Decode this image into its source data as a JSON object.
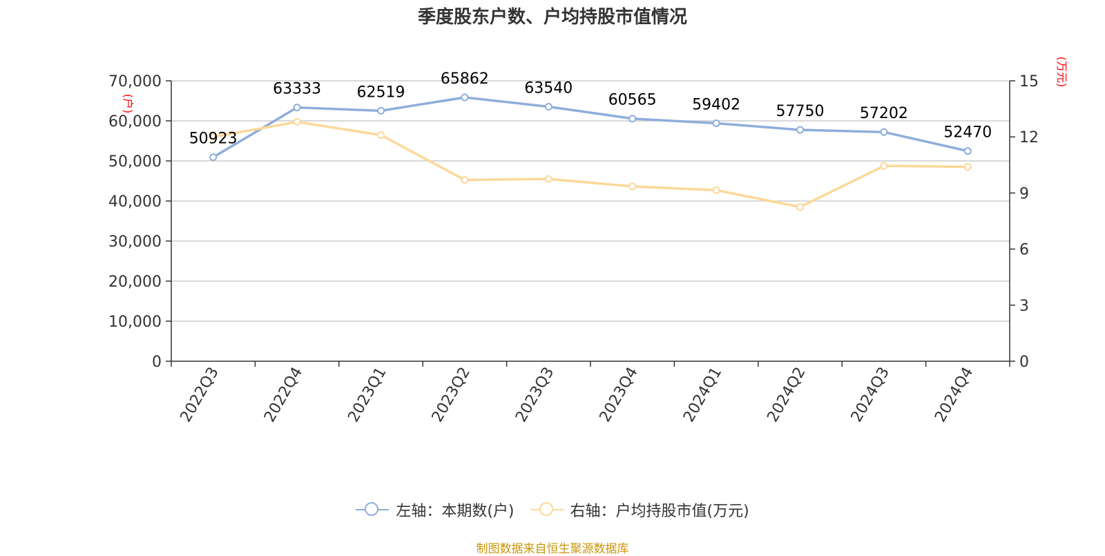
{
  "chart_data": {
    "type": "line",
    "title": "季度股东户数、户均持股市值情况",
    "categories": [
      "2022Q3",
      "2022Q4",
      "2023Q1",
      "2023Q2",
      "2023Q3",
      "2023Q4",
      "2024Q1",
      "2024Q2",
      "2024Q3",
      "2024Q4"
    ],
    "series": [
      {
        "name": "左轴：本期数(户)",
        "axis": "left",
        "color": "#8eaedb",
        "values": [
          50923,
          63333,
          62519,
          65862,
          63540,
          60565,
          59402,
          57750,
          57202,
          52470
        ],
        "labels": [
          "50923",
          "63333",
          "62519",
          "65862",
          "63540",
          "60565",
          "59402",
          "57750",
          "57202",
          "52470"
        ]
      },
      {
        "name": "右轴：户均持股市值(万元)",
        "axis": "right",
        "color": "#fcd899",
        "values": [
          12.0,
          12.8,
          12.1,
          9.7,
          9.75,
          9.35,
          9.15,
          8.25,
          10.45,
          10.4
        ]
      }
    ],
    "y_left": {
      "unit": "(户)",
      "ylim": [
        0,
        70000
      ],
      "ticks": [
        "0",
        "10,000",
        "20,000",
        "30,000",
        "40,000",
        "50,000",
        "60,000",
        "70,000"
      ]
    },
    "y_right": {
      "unit": "(万元)",
      "ylim": [
        0,
        15
      ],
      "ticks": [
        "0",
        "3",
        "6",
        "9",
        "12",
        "15"
      ]
    },
    "grid": true,
    "legend": "bottom",
    "source": "制图数据来自恒生聚源数据库"
  }
}
